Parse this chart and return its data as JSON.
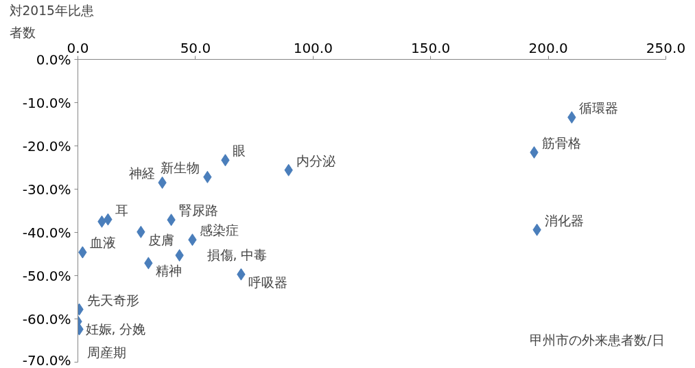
{
  "chart_data": {
    "type": "scatter",
    "ylabel": "対2015年比患者数",
    "xlabel": "甲州市の外来患者数/日",
    "x": [
      210.0,
      194.0,
      195.2,
      89.6,
      62.7,
      55.1,
      35.9,
      39.7,
      12.8,
      10.2,
      26.8,
      48.7,
      2.0,
      30.0,
      43.2,
      69.4,
      0.6,
      0.0,
      0.6
    ],
    "series": [
      {
        "color": "#4a7ebb",
        "values": [
          -13.4,
          -21.5,
          -39.4,
          -25.6,
          -23.3,
          -27.2,
          -28.5,
          -37.1,
          -37.0,
          -37.5,
          -39.9,
          -41.7,
          -44.6,
          -47.1,
          -45.3,
          -49.7,
          -57.8,
          -60.6,
          -62.4
        ]
      }
    ],
    "annotations": [
      {
        "text": "循環器",
        "x": 210.0,
        "y": -13.4
      },
      {
        "text": "筋骨格",
        "x": 194.0,
        "y": -21.5
      },
      {
        "text": "消化器",
        "x": 195.2,
        "y": -39.4
      },
      {
        "text": "内分泌",
        "x": 89.6,
        "y": -25.6
      },
      {
        "text": "眼",
        "x": 62.7,
        "y": -23.3
      },
      {
        "text": "新生物",
        "x": 55.1,
        "y": -27.2
      },
      {
        "text": "神経",
        "x": 35.9,
        "y": -28.5
      },
      {
        "text": "腎尿路",
        "x": 39.7,
        "y": -37.1
      },
      {
        "text": "耳",
        "x": 12.8,
        "y": -37.0
      },
      {
        "text": "皮膚",
        "x": 26.8,
        "y": -39.9
      },
      {
        "text": "感染症",
        "x": 48.7,
        "y": -41.7
      },
      {
        "text": "血液",
        "x": 2.0,
        "y": -44.6
      },
      {
        "text": "精神",
        "x": 30.0,
        "y": -47.1
      },
      {
        "text": "損傷, 中毒",
        "x": 43.2,
        "y": -45.3
      },
      {
        "text": "呼吸器",
        "x": 69.4,
        "y": -49.7
      },
      {
        "text": "先天奇形",
        "x": 0.6,
        "y": -57.8
      },
      {
        "text": "妊娠, 分娩",
        "x": 0.0,
        "y": -60.6
      },
      {
        "text": "周産期",
        "x": 0.6,
        "y": -62.4
      }
    ],
    "xlim": [
      0,
      250
    ],
    "xticks": [
      {
        "value": 0,
        "label": "0.0"
      },
      {
        "value": 50,
        "label": "50.0"
      },
      {
        "value": 100,
        "label": "100.0"
      },
      {
        "value": 150,
        "label": "150.0"
      },
      {
        "value": 200,
        "label": "200.0"
      },
      {
        "value": 250,
        "label": "250.0"
      }
    ],
    "ylim": [
      -70,
      0
    ],
    "yticks": [
      {
        "value": 0,
        "label": "0.0%"
      },
      {
        "value": -10,
        "label": "-10.0%"
      },
      {
        "value": -20,
        "label": "-20.0%"
      },
      {
        "value": -30,
        "label": "-30.0%"
      },
      {
        "value": -40,
        "label": "-40.0%"
      },
      {
        "value": -50,
        "label": "-50.0%"
      },
      {
        "value": -60,
        "label": "-60.0%"
      },
      {
        "value": -70,
        "label": "-70.0%"
      }
    ],
    "marker": "diamond",
    "grid": false
  }
}
